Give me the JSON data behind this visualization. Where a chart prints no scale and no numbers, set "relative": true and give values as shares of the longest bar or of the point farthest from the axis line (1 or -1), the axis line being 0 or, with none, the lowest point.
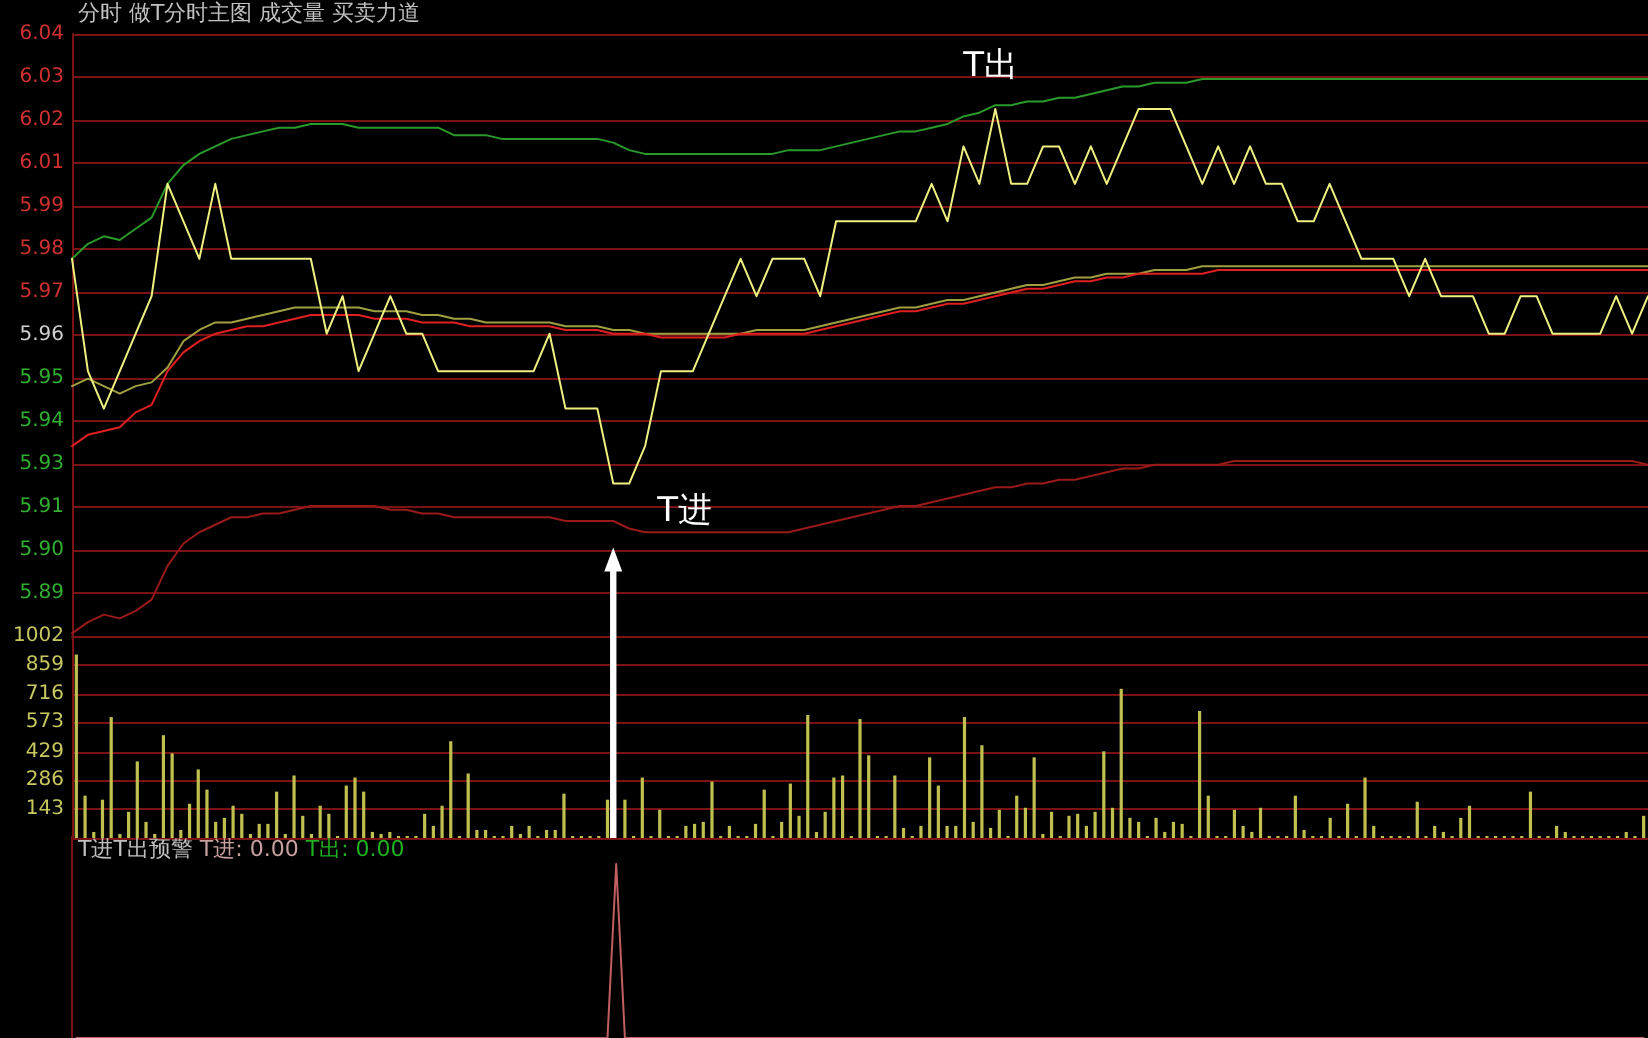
{
  "chart_data": [
    {
      "type": "line",
      "title": "分时 做T分时主图 成交量 买卖力道",
      "tick_labels": "y",
      "grid": "y",
      "categories": [
        null,
        null,
        null,
        null,
        null,
        null,
        null,
        null,
        null,
        null,
        null,
        null,
        null,
        null,
        null,
        null,
        null,
        null,
        null,
        null,
        null,
        null,
        null,
        null,
        null,
        null,
        null,
        null,
        null,
        null,
        null,
        null,
        null,
        null,
        null,
        null,
        null,
        null,
        null,
        null,
        null,
        null,
        null,
        null,
        null,
        null,
        null,
        null,
        null,
        null,
        null,
        null,
        null,
        null,
        null,
        null,
        null,
        null,
        null,
        null,
        null,
        null,
        null,
        null,
        null,
        null,
        null,
        null,
        null,
        null,
        null,
        null,
        null,
        null,
        null,
        null,
        null,
        null,
        null,
        null,
        null,
        null,
        null,
        null,
        null,
        null,
        null,
        null,
        null,
        null,
        null,
        null,
        null,
        null,
        null,
        null,
        null,
        null,
        null,
        null
      ],
      "ylim": [
        5.8793,
        6.04
      ],
      "yticks": [
        {
          "value": 6.04,
          "label": "6.04"
        },
        {
          "value": 6.0285,
          "label": "6.03"
        },
        {
          "value": 6.017,
          "label": "6.02"
        },
        {
          "value": 6.0056,
          "label": "6.01"
        },
        {
          "value": 5.9941,
          "label": "5.99"
        },
        {
          "value": 5.9826,
          "label": "5.98"
        },
        {
          "value": 5.9711,
          "label": "5.97"
        },
        {
          "value": 5.9596,
          "label": "5.96"
        },
        {
          "value": 5.9482,
          "label": "5.95"
        },
        {
          "value": 5.9367,
          "label": "5.94"
        },
        {
          "value": 5.9252,
          "label": "5.93"
        },
        {
          "value": 5.9137,
          "label": "5.91"
        },
        {
          "value": 5.9022,
          "label": "5.90"
        },
        {
          "value": 5.8908,
          "label": "5.89"
        }
      ],
      "series": [
        {
          "color": "#2a9a2a",
          "values": [
            5.98,
            5.984,
            5.986,
            5.985,
            5.988,
            5.991,
            6.0,
            6.005,
            6.008,
            6.01,
            6.012,
            6.013,
            6.014,
            6.015,
            6.015,
            6.016,
            6.016,
            6.016,
            6.015,
            6.015,
            6.015,
            6.015,
            6.015,
            6.015,
            6.013,
            6.013,
            6.013,
            6.012,
            6.012,
            6.012,
            6.012,
            6.012,
            6.012,
            6.012,
            6.011,
            6.009,
            6.008,
            6.008,
            6.008,
            6.008,
            6.008,
            6.008,
            6.008,
            6.008,
            6.008,
            6.009,
            6.009,
            6.009,
            6.01,
            6.011,
            6.012,
            6.013,
            6.014,
            6.014,
            6.015,
            6.016,
            6.018,
            6.019,
            6.021,
            6.021,
            6.022,
            6.022,
            6.023,
            6.023,
            6.024,
            6.025,
            6.026,
            6.026,
            6.027,
            6.027,
            6.027,
            6.028,
            6.028,
            6.028,
            6.028,
            6.028,
            6.028,
            6.028,
            6.028,
            6.028,
            6.028,
            6.028,
            6.028,
            6.028,
            6.028,
            6.028,
            6.028,
            6.028,
            6.028,
            6.028,
            6.028,
            6.028,
            6.028,
            6.028,
            6.028,
            6.028,
            6.028,
            6.028,
            6.028,
            6.028
          ]
        },
        {
          "color": "#9a1a1a",
          "values": [
            5.88,
            5.883,
            5.885,
            5.884,
            5.886,
            5.889,
            5.898,
            5.904,
            5.907,
            5.909,
            5.911,
            5.911,
            5.912,
            5.912,
            5.913,
            5.914,
            5.914,
            5.914,
            5.914,
            5.914,
            5.913,
            5.913,
            5.912,
            5.912,
            5.911,
            5.911,
            5.911,
            5.911,
            5.911,
            5.911,
            5.911,
            5.91,
            5.91,
            5.91,
            5.91,
            5.908,
            5.907,
            5.907,
            5.907,
            5.907,
            5.907,
            5.907,
            5.907,
            5.907,
            5.907,
            5.907,
            5.908,
            5.909,
            5.91,
            5.911,
            5.912,
            5.913,
            5.914,
            5.914,
            5.915,
            5.916,
            5.917,
            5.918,
            5.919,
            5.919,
            5.92,
            5.92,
            5.921,
            5.921,
            5.922,
            5.923,
            5.924,
            5.924,
            5.925,
            5.925,
            5.925,
            5.925,
            5.925,
            5.926,
            5.926,
            5.926,
            5.926,
            5.926,
            5.926,
            5.926,
            5.926,
            5.926,
            5.926,
            5.926,
            5.926,
            5.926,
            5.926,
            5.926,
            5.926,
            5.926,
            5.926,
            5.926,
            5.926,
            5.926,
            5.926,
            5.926,
            5.926,
            5.926,
            5.926,
            5.925
          ]
        },
        {
          "color": "#a0a040",
          "values": [
            5.946,
            5.948,
            5.946,
            5.944,
            5.946,
            5.947,
            5.951,
            5.958,
            5.961,
            5.963,
            5.963,
            5.964,
            5.965,
            5.966,
            5.967,
            5.967,
            5.967,
            5.967,
            5.967,
            5.966,
            5.966,
            5.966,
            5.965,
            5.965,
            5.964,
            5.964,
            5.963,
            5.963,
            5.963,
            5.963,
            5.963,
            5.962,
            5.962,
            5.962,
            5.961,
            5.961,
            5.96,
            5.96,
            5.96,
            5.96,
            5.96,
            5.96,
            5.96,
            5.961,
            5.961,
            5.961,
            5.961,
            5.962,
            5.963,
            5.964,
            5.965,
            5.966,
            5.967,
            5.967,
            5.968,
            5.969,
            5.969,
            5.97,
            5.971,
            5.972,
            5.973,
            5.973,
            5.974,
            5.975,
            5.975,
            5.976,
            5.976,
            5.976,
            5.977,
            5.977,
            5.977,
            5.978,
            5.978,
            5.978,
            5.978,
            5.978,
            5.978,
            5.978,
            5.978,
            5.978,
            5.978,
            5.978,
            5.978,
            5.978,
            5.978,
            5.978,
            5.978,
            5.978,
            5.978,
            5.978,
            5.978,
            5.978,
            5.978,
            5.978,
            5.978,
            5.978,
            5.978,
            5.978,
            5.978,
            5.978
          ]
        },
        {
          "color": "#e02020",
          "values": [
            5.93,
            5.933,
            5.934,
            5.935,
            5.939,
            5.941,
            5.95,
            5.955,
            5.958,
            5.96,
            5.961,
            5.962,
            5.962,
            5.963,
            5.964,
            5.965,
            5.965,
            5.965,
            5.965,
            5.964,
            5.964,
            5.964,
            5.963,
            5.963,
            5.963,
            5.962,
            5.962,
            5.962,
            5.962,
            5.962,
            5.962,
            5.961,
            5.961,
            5.961,
            5.96,
            5.96,
            5.96,
            5.959,
            5.959,
            5.959,
            5.959,
            5.959,
            5.96,
            5.96,
            5.96,
            5.96,
            5.96,
            5.961,
            5.962,
            5.963,
            5.964,
            5.965,
            5.966,
            5.966,
            5.967,
            5.968,
            5.968,
            5.969,
            5.97,
            5.971,
            5.972,
            5.972,
            5.973,
            5.974,
            5.974,
            5.975,
            5.975,
            5.976,
            5.976,
            5.976,
            5.976,
            5.976,
            5.977,
            5.977,
            5.977,
            5.977,
            5.977,
            5.977,
            5.977,
            5.977,
            5.977,
            5.977,
            5.977,
            5.977,
            5.977,
            5.977,
            5.977,
            5.977,
            5.977,
            5.977,
            5.977,
            5.977,
            5.977,
            5.977,
            5.977,
            5.977,
            5.977,
            5.977,
            5.977,
            5.977
          ]
        },
        {
          "color": "#f0f080",
          "values": [
            5.98,
            5.95,
            5.94,
            5.95,
            5.96,
            5.97,
            6.0,
            5.99,
            5.98,
            6.0,
            5.98,
            5.98,
            5.98,
            5.98,
            5.98,
            5.98,
            5.96,
            5.97,
            5.95,
            5.96,
            5.97,
            5.96,
            5.96,
            5.95,
            5.95,
            5.95,
            5.95,
            5.95,
            5.95,
            5.95,
            5.96,
            5.94,
            5.94,
            5.94,
            5.92,
            5.92,
            5.93,
            5.95,
            5.95,
            5.95,
            5.96,
            5.97,
            5.98,
            5.97,
            5.98,
            5.98,
            5.98,
            5.97,
            5.99,
            5.99,
            5.99,
            5.99,
            5.99,
            5.99,
            6.0,
            5.99,
            6.01,
            6.0,
            6.02,
            6.0,
            6.0,
            6.01,
            6.01,
            6.0,
            6.01,
            6.0,
            6.01,
            6.02,
            6.02,
            6.02,
            6.01,
            6.0,
            6.01,
            6.0,
            6.01,
            6.0,
            6.0,
            5.99,
            5.99,
            6.0,
            5.99,
            5.98,
            5.98,
            5.98,
            5.97,
            5.98,
            5.97,
            5.97,
            5.97,
            5.96,
            5.96,
            5.97,
            5.97,
            5.96,
            5.96,
            5.96,
            5.96,
            5.97,
            5.96,
            5.97
          ]
        }
      ],
      "annotations": [
        {
          "text": "T出",
          "y": 6.02
        },
        "T进"
      ]
    },
    {
      "type": "bar",
      "tick_labels": "y",
      "grid": "y",
      "categories": [
        null,
        null,
        null,
        null,
        null,
        null,
        null,
        null,
        null,
        null,
        null,
        null,
        null,
        null,
        null,
        null,
        null,
        null,
        null,
        null,
        null,
        null,
        null,
        null,
        null,
        null,
        null,
        null,
        null,
        null,
        null,
        null,
        null,
        null,
        null,
        null,
        null,
        null,
        null,
        null,
        null,
        null,
        null,
        null,
        null,
        null,
        null,
        null,
        null,
        null,
        null,
        null,
        null,
        null,
        null,
        null,
        null,
        null,
        null,
        null,
        null,
        null,
        null,
        null,
        null,
        null,
        null,
        null,
        null,
        null,
        null,
        null,
        null,
        null,
        null,
        null,
        null,
        null,
        null,
        null,
        null,
        null,
        null,
        null,
        null,
        null,
        null,
        null,
        null,
        null,
        null,
        null,
        null,
        null,
        null,
        null,
        null,
        null,
        null,
        null,
        null,
        null,
        null,
        null,
        null,
        null,
        null,
        null,
        null,
        null,
        null,
        null,
        null,
        null,
        null,
        null,
        null,
        null,
        null,
        null,
        null,
        null,
        null,
        null,
        null,
        null,
        null,
        null,
        null,
        null,
        null,
        null,
        null,
        null,
        null,
        null,
        null,
        null,
        null,
        null,
        null,
        null,
        null,
        null,
        null,
        null,
        null,
        null,
        null,
        null,
        null,
        null,
        null,
        null,
        null,
        null,
        null,
        null,
        null,
        null,
        null,
        null,
        null,
        null,
        null,
        null,
        null,
        null,
        null,
        null,
        null,
        null,
        null,
        null,
        null,
        null,
        null,
        null,
        null,
        null,
        null
      ],
      "ylim": [
        0,
        1002
      ],
      "yticks": [
        143,
        286,
        429,
        573,
        716,
        859,
        1002
      ],
      "series": [
        {
          "color": "#c0c050",
          "values": [
            910,
            210,
            30,
            190,
            600,
            20,
            130,
            380,
            80,
            20,
            510,
            420,
            40,
            170,
            340,
            240,
            80,
            100,
            160,
            120,
            20,
            70,
            70,
            230,
            20,
            310,
            110,
            20,
            160,
            120,
            10,
            260,
            300,
            230,
            30,
            20,
            30,
            10,
            10,
            10,
            120,
            60,
            160,
            480,
            10,
            320,
            40,
            40,
            10,
            10,
            60,
            20,
            60,
            10,
            40,
            40,
            220,
            10,
            10,
            10,
            10,
            190,
            null,
            190,
            10,
            300,
            10,
            140,
            10,
            10,
            60,
            70,
            80,
            280,
            10,
            60,
            10,
            10,
            70,
            240,
            10,
            80,
            270,
            110,
            610,
            30,
            130,
            300,
            310,
            10,
            590,
            410,
            10,
            10,
            310,
            50,
            10,
            60,
            400,
            260,
            60,
            60,
            600,
            80,
            460,
            50,
            140,
            10,
            210,
            150,
            400,
            20,
            130,
            10,
            110,
            120,
            60,
            130,
            430,
            150,
            740,
            100,
            80,
            10,
            100,
            30,
            80,
            70,
            10,
            630,
            210,
            10,
            10,
            140,
            60,
            30,
            150,
            10,
            10,
            10,
            210,
            40,
            10,
            10,
            100,
            10,
            170,
            10,
            300,
            60,
            10,
            10,
            10,
            10,
            180,
            10,
            60,
            30,
            10,
            100,
            160,
            10,
            10,
            10,
            10,
            10,
            10,
            230,
            10,
            10,
            60,
            30,
            10,
            10,
            10,
            10,
            10,
            10,
            30,
            10,
            110
          ]
        }
      ]
    },
    {
      "type": "line",
      "title": "T进T出预警",
      "relative": true,
      "tick_labels": false,
      "annotations": [
        "T进: 0.00",
        "T出: 0.00"
      ],
      "categories": [
        null,
        null,
        null,
        null,
        null,
        null,
        null,
        null,
        null,
        null,
        null,
        null,
        null,
        null,
        null,
        null,
        null,
        null,
        null,
        null,
        null,
        null,
        null,
        null,
        null,
        null,
        null,
        null,
        null,
        null,
        null,
        null,
        null,
        null,
        null,
        null,
        null,
        null,
        null,
        null,
        null,
        null,
        null,
        null,
        null,
        null,
        null,
        null,
        null,
        null,
        null,
        null,
        null,
        null,
        null,
        null,
        null,
        null,
        null,
        null,
        null,
        null,
        null,
        null,
        null,
        null,
        null,
        null,
        null,
        null,
        null,
        null,
        null,
        null,
        null,
        null,
        null,
        null,
        null,
        null,
        null,
        null,
        null,
        null,
        null,
        null,
        null,
        null,
        null,
        null,
        null,
        null,
        null,
        null,
        null,
        null,
        null,
        null,
        null,
        null,
        null,
        null,
        null,
        null,
        null,
        null,
        null,
        null,
        null,
        null,
        null,
        null,
        null,
        null,
        null,
        null,
        null,
        null,
        null,
        null,
        null,
        null,
        null,
        null,
        null,
        null,
        null,
        null,
        null,
        null,
        null,
        null,
        null,
        null,
        null,
        null,
        null,
        null,
        null,
        null,
        null,
        null,
        null,
        null,
        null,
        null,
        null,
        null,
        null,
        null,
        null,
        null,
        null,
        null,
        null,
        null,
        null,
        null,
        null,
        null,
        null,
        null,
        null,
        null,
        null,
        null,
        null,
        null,
        null,
        null,
        null,
        null,
        null,
        null,
        null,
        null,
        null,
        null,
        null,
        null,
        null
      ],
      "series": [
        {
          "color": "#c06060",
          "values": [
            0,
            0,
            0,
            0,
            0,
            0,
            0,
            0,
            0,
            0,
            0,
            0,
            0,
            0,
            0,
            0,
            0,
            0,
            0,
            0,
            0,
            0,
            0,
            0,
            0,
            0,
            0,
            0,
            0,
            0,
            0,
            0,
            0,
            0,
            0,
            0,
            0,
            0,
            0,
            0,
            0,
            0,
            0,
            0,
            0,
            0,
            0,
            0,
            0,
            0,
            0,
            0,
            0,
            0,
            0,
            0,
            0,
            0,
            0,
            0,
            0,
            0,
            1,
            0,
            0,
            0,
            0,
            0,
            0,
            0,
            0,
            0,
            0,
            0,
            0,
            0,
            0,
            0,
            0,
            0,
            0,
            0,
            0,
            0,
            0,
            0,
            0,
            0,
            0,
            0,
            0,
            0,
            0,
            0,
            0,
            0,
            0,
            0,
            0,
            0,
            0,
            0,
            0,
            0,
            0,
            0,
            0,
            0,
            0,
            0,
            0,
            0,
            0,
            0,
            0,
            0,
            0,
            0,
            0,
            0,
            0,
            0,
            0,
            0,
            0,
            0,
            0,
            0,
            0,
            0,
            0,
            0,
            0,
            0,
            0,
            0,
            0,
            0,
            0,
            0,
            0,
            0,
            0,
            0,
            0,
            0,
            0,
            0,
            0,
            0,
            0,
            0,
            0,
            0,
            0,
            0,
            0,
            0,
            0,
            0,
            0,
            0,
            0,
            0,
            0,
            0,
            0,
            0,
            0,
            0,
            0,
            0,
            0,
            0,
            0,
            0,
            0,
            0,
            0,
            0,
            0
          ]
        }
      ]
    }
  ]
}
